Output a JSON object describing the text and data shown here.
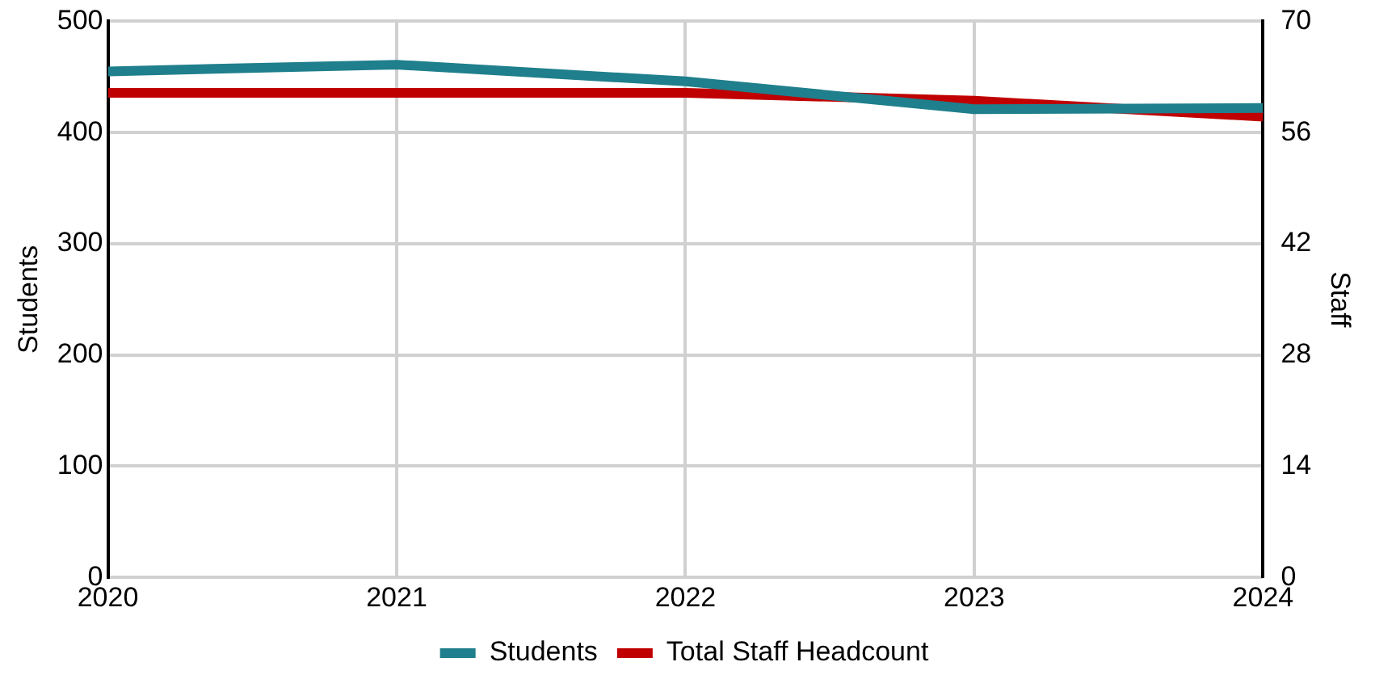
{
  "chart_data": {
    "type": "line",
    "ylabel": "Students",
    "y2label": "Staff",
    "x": [
      2020,
      2021,
      2022,
      2023,
      2024
    ],
    "xlim": [
      2020,
      2024
    ],
    "xticks": [
      2020,
      2021,
      2022,
      2023,
      2024
    ],
    "ylim": [
      0,
      500
    ],
    "yticks": [
      0,
      100,
      200,
      300,
      400,
      500
    ],
    "y2lim": [
      0,
      70
    ],
    "y2ticks": [
      0,
      14,
      28,
      42,
      56,
      70
    ],
    "grid": true,
    "legend": "bottom",
    "marker": "none",
    "series": [
      {
        "name": "Students",
        "color": "#1f7f8c",
        "values": [
          455,
          461,
          446,
          421,
          422
        ]
      },
      {
        "name": "Total Staff Headcount",
        "color": "#c00000",
        "axis": "y2",
        "values": [
          61,
          61,
          61,
          60,
          58
        ]
      }
    ]
  }
}
